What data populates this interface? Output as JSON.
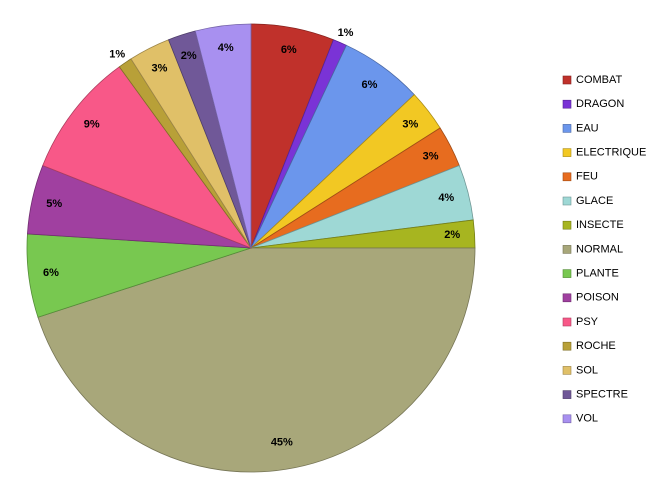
{
  "chart_data": {
    "type": "pie",
    "title": "",
    "legend_position": "right",
    "categories": [
      "COMBAT",
      "DRAGON",
      "EAU",
      "ELECTRIQUE",
      "FEU",
      "GLACE",
      "INSECTE",
      "NORMAL",
      "PLANTE",
      "POISON",
      "PSY",
      "ROCHE",
      "SOL",
      "SPECTRE",
      "VOL"
    ],
    "values": [
      6,
      1,
      6,
      3,
      3,
      4,
      2,
      45,
      6,
      5,
      9,
      1,
      3,
      2,
      4
    ],
    "labels": [
      "6%",
      "1%",
      "6%",
      "3%",
      "3%",
      "4%",
      "2%",
      "45%",
      "6%",
      "5%",
      "9%",
      "1%",
      "3%",
      "2%",
      "4%"
    ],
    "colors": [
      "#C0312B",
      "#7A33D6",
      "#6B96EC",
      "#F2C823",
      "#E76C1F",
      "#9ED8D5",
      "#A7B520",
      "#A8A77A",
      "#78C850",
      "#A040A0",
      "#F85888",
      "#B8A038",
      "#E0C068",
      "#705898",
      "#A890F0"
    ]
  }
}
